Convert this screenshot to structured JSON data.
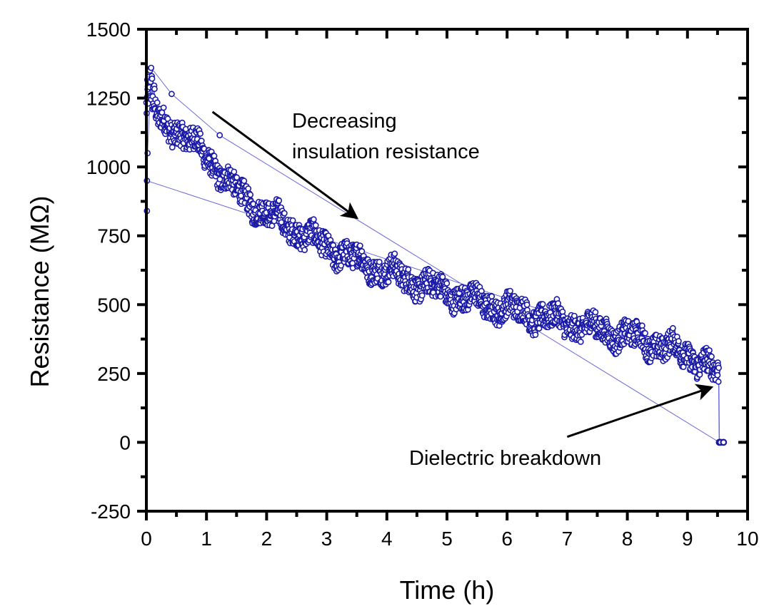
{
  "chart_data": {
    "type": "scatter",
    "title": "",
    "xlabel": "Time (h)",
    "ylabel": "Resistance (MΩ)",
    "xlim": [
      0,
      10
    ],
    "ylim": [
      -250,
      1500
    ],
    "x_ticks": [
      0,
      1,
      2,
      3,
      4,
      5,
      6,
      7,
      8,
      9,
      10
    ],
    "x_tick_labels": [
      "0",
      "1",
      "2",
      "3",
      "4",
      "5",
      "6",
      "7",
      "8",
      "9",
      "10"
    ],
    "y_ticks": [
      -250,
      0,
      250,
      500,
      750,
      1000,
      1250,
      1500
    ],
    "y_tick_labels": [
      "-250",
      "0",
      "250",
      "500",
      "750",
      "1000",
      "1250",
      "1500"
    ],
    "grid": false,
    "legend": null,
    "marker_color": "#1a1aa6",
    "series": [
      {
        "name": "Insulation resistance",
        "marker": "open-circle",
        "trend_points": [
          {
            "x": 0.0,
            "y": 1200
          },
          {
            "x": 0.05,
            "y": 1300
          },
          {
            "x": 0.2,
            "y": 1160
          },
          {
            "x": 0.5,
            "y": 1140
          },
          {
            "x": 1.0,
            "y": 1040
          },
          {
            "x": 1.5,
            "y": 910
          },
          {
            "x": 2.0,
            "y": 830
          },
          {
            "x": 2.5,
            "y": 770
          },
          {
            "x": 3.0,
            "y": 710
          },
          {
            "x": 3.5,
            "y": 660
          },
          {
            "x": 4.0,
            "y": 620
          },
          {
            "x": 4.5,
            "y": 580
          },
          {
            "x": 5.0,
            "y": 545
          },
          {
            "x": 5.5,
            "y": 510
          },
          {
            "x": 6.0,
            "y": 485
          },
          {
            "x": 6.5,
            "y": 460
          },
          {
            "x": 7.0,
            "y": 435
          },
          {
            "x": 7.5,
            "y": 410
          },
          {
            "x": 8.0,
            "y": 385
          },
          {
            "x": 8.5,
            "y": 355
          },
          {
            "x": 9.0,
            "y": 320
          },
          {
            "x": 9.3,
            "y": 285
          },
          {
            "x": 9.52,
            "y": 240
          }
        ],
        "scatter_band_halfwidth": 45,
        "initial_outliers": [
          {
            "x": 0.01,
            "y": 950
          },
          {
            "x": 0.01,
            "y": 840
          },
          {
            "x": 0.02,
            "y": 1050
          },
          {
            "x": 0.08,
            "y": 1360
          },
          {
            "x": 0.42,
            "y": 1265
          },
          {
            "x": 1.22,
            "y": 1115
          }
        ],
        "breakdown_points": [
          {
            "x": 9.53,
            "y": 0
          },
          {
            "x": 9.55,
            "y": 0
          },
          {
            "x": 9.6,
            "y": 0
          }
        ]
      }
    ],
    "annotations": [
      {
        "text_lines": [
          "Decreasing",
          "insulation resistance"
        ],
        "arrow_from": {
          "x": 1.1,
          "y": 1200
        },
        "arrow_to": {
          "x": 3.5,
          "y": 815
        }
      },
      {
        "text_lines": [
          "Dielectric breakdown"
        ],
        "arrow_from": {
          "x": 7.0,
          "y": 20
        },
        "arrow_to": {
          "x": 9.4,
          "y": 200
        }
      }
    ]
  }
}
